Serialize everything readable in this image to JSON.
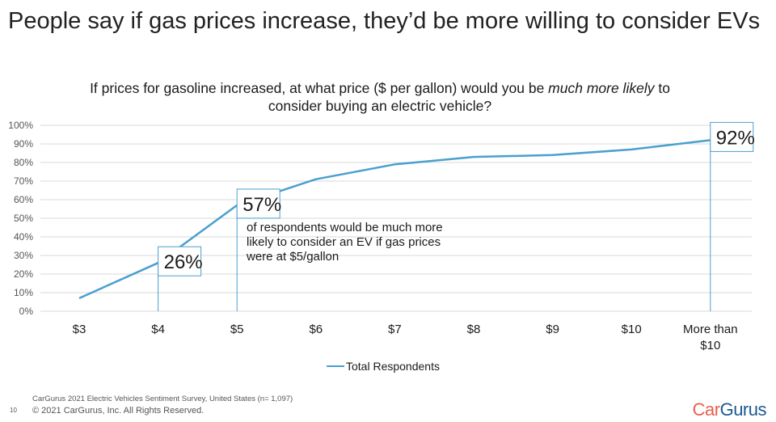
{
  "title": "People say if gas prices increase, they’d be more willing to consider EVs",
  "subtitle": {
    "part1": "If prices for gasoline increased, at what price ($ per gallon) would you be ",
    "emphasis": "much more likely",
    "part2": " to consider buying an electric vehicle?"
  },
  "callout": {
    "text": "of respondents would be much more likely to consider an EV if gas prices were at $5/gallon"
  },
  "footer": {
    "source": "CarGurus 2021 Electric Vehicles Sentiment Survey, United States (n= 1,097)",
    "copyright": "© 2021 CarGurus, Inc.  All Rights Reserved.",
    "page_number": "10",
    "logo_part1": "Car",
    "logo_part2": "Gurus"
  },
  "colors": {
    "line": "#4a9fd0",
    "grid": "#d9d9d9",
    "callout_border": "#4a9fd0"
  },
  "chart_data": {
    "type": "line",
    "categories": [
      "$3",
      "$4",
      "$5",
      "$6",
      "$7",
      "$8",
      "$9",
      "$10",
      "More than $10"
    ],
    "series": [
      {
        "name": "Total Respondents",
        "values": [
          7,
          26,
          57,
          71,
          79,
          83,
          84,
          87,
          92
        ]
      }
    ],
    "ylim": [
      0,
      100
    ],
    "yticks": [
      "0%",
      "10%",
      "20%",
      "30%",
      "40%",
      "50%",
      "60%",
      "70%",
      "80%",
      "90%",
      "100%"
    ],
    "grid": true,
    "legend": "bottom",
    "labels": [
      {
        "category": "$4",
        "text": "26%"
      },
      {
        "category": "$5",
        "text": "57%"
      },
      {
        "category": "More than $10",
        "text": "92%"
      }
    ]
  }
}
